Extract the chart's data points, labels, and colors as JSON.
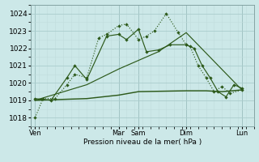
{
  "background_color": "#cce8e8",
  "grid_color_major": "#aacccc",
  "grid_color_minor": "#c0dcdc",
  "line_color": "#2d5a1b",
  "xlabel": "Pression niveau de la mer( hPa )",
  "ylim": [
    1017.5,
    1024.5
  ],
  "yticks": [
    1018,
    1019,
    1020,
    1021,
    1022,
    1023,
    1024
  ],
  "xlim": [
    0,
    28
  ],
  "day_labels": [
    "Ven",
    "Mar",
    "Sam",
    "Dim",
    "Lun"
  ],
  "day_positions": [
    0.5,
    11.0,
    13.5,
    19.5,
    26.5
  ],
  "vline_positions": [
    0.5,
    11.0,
    13.5,
    19.5,
    26.5
  ],
  "series1_x": [
    0.5,
    1.5,
    3.0,
    4.5,
    5.5,
    7.0,
    8.5,
    9.5,
    11.0,
    12.0,
    13.5,
    14.5,
    15.5,
    17.0,
    18.5,
    19.5,
    20.0,
    21.0,
    22.0,
    23.0,
    24.0,
    25.0,
    26.5
  ],
  "series1_y": [
    1018.0,
    1019.1,
    1019.1,
    1019.9,
    1020.5,
    1020.3,
    1022.6,
    1022.8,
    1023.3,
    1023.4,
    1022.5,
    1022.7,
    1023.0,
    1024.0,
    1022.9,
    1022.2,
    1022.1,
    1021.0,
    1020.3,
    1019.5,
    1019.8,
    1019.4,
    1019.6
  ],
  "series2_x": [
    0.5,
    2.5,
    4.5,
    5.5,
    7.0,
    9.5,
    11.0,
    12.0,
    13.5,
    14.5,
    16.0,
    17.5,
    19.5,
    20.5,
    21.5,
    22.5,
    23.5,
    24.5,
    25.5,
    26.5
  ],
  "series2_y": [
    1019.1,
    1019.0,
    1020.3,
    1021.0,
    1020.2,
    1022.7,
    1022.8,
    1022.5,
    1023.1,
    1021.8,
    1021.9,
    1022.2,
    1022.2,
    1022.0,
    1021.0,
    1020.3,
    1019.5,
    1019.2,
    1019.9,
    1019.7
  ],
  "series3_x": [
    0.5,
    7.0,
    11.0,
    13.5,
    16.0,
    19.5,
    26.5
  ],
  "series3_y": [
    1019.0,
    1019.9,
    1020.8,
    1021.3,
    1021.8,
    1022.9,
    1019.6
  ],
  "series4_x": [
    0.5,
    7.0,
    11.0,
    13.5,
    19.5,
    22.0,
    24.0,
    26.5
  ],
  "series4_y": [
    1019.0,
    1019.1,
    1019.3,
    1019.5,
    1019.55,
    1019.55,
    1019.5,
    1019.6
  ]
}
